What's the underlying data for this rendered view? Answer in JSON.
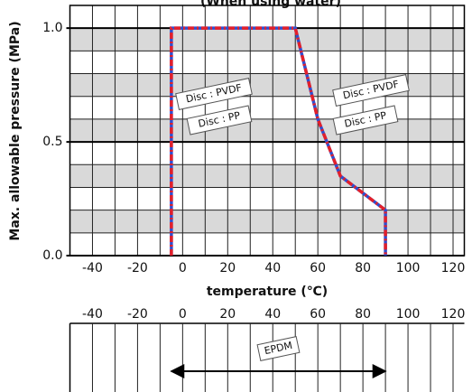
{
  "chart_data": [
    {
      "type": "line",
      "title": "(When using water)",
      "x_label": "temperature (℃)",
      "y_label": "Max. allowable pressure (MPa)",
      "xlim": [
        -50,
        125
      ],
      "ylim": [
        0,
        1.1
      ],
      "xticks": [
        -40,
        -20,
        0,
        20,
        40,
        60,
        80,
        100,
        120
      ],
      "yticks": [
        {
          "value": 0,
          "label": "0.0"
        },
        {
          "value": 0.5,
          "label": "0.5"
        },
        {
          "value": 1,
          "label": "1.0"
        }
      ],
      "xgrid": [
        -40,
        -30,
        -20,
        -10,
        0,
        10,
        20,
        30,
        40,
        50,
        60,
        70,
        80,
        90,
        100,
        110,
        120
      ],
      "ygrid": [
        0.1,
        0.2,
        0.3,
        0.4,
        0.6,
        0.7,
        0.8,
        0.9
      ],
      "series": [
        {
          "name": "Disc : PP",
          "color": "#2f4fd0",
          "x": [
            -5,
            -5,
            50,
            60,
            70,
            90,
            90
          ],
          "values": [
            0,
            1,
            1,
            0.6,
            0.35,
            0.2,
            0
          ]
        },
        {
          "name": "Disc : PVDF",
          "color": "#e3202a",
          "x": [
            -5,
            -5,
            50,
            60,
            70,
            90,
            90
          ],
          "values": [
            0,
            1,
            1,
            0.6,
            0.35,
            0.2,
            0
          ]
        }
      ],
      "annotations": [
        "Disc : PVDF",
        "Disc : PP",
        "Disc : PVDF",
        "Disc : PP"
      ]
    },
    {
      "type": "range",
      "xlim": [
        -50,
        125
      ],
      "xticks": [
        -40,
        -20,
        0,
        20,
        40,
        60,
        80,
        100,
        120
      ],
      "xgrid": [
        -40,
        -30,
        -20,
        -10,
        0,
        10,
        20,
        30,
        40,
        50,
        60,
        70,
        80,
        90,
        100,
        110,
        120
      ],
      "series": [
        {
          "name": "EPDM",
          "values": [
            -5,
            90
          ]
        }
      ]
    }
  ]
}
